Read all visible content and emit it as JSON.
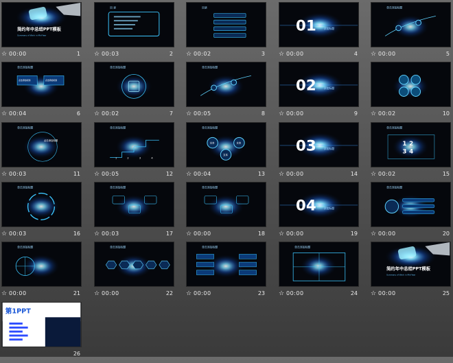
{
  "slides": [
    {
      "number": "1",
      "time": "00:00",
      "type": "title",
      "title": "简约年中总结PPT模板",
      "subtitle": "Summary of Work in Mid-Year"
    },
    {
      "number": "2",
      "time": "00:03",
      "type": "contents",
      "heading": "目 录"
    },
    {
      "number": "3",
      "time": "00:02",
      "type": "contents-list",
      "heading": "目录"
    },
    {
      "number": "4",
      "time": "00:00",
      "type": "section",
      "section_label": "01",
      "section_caption": "添加标题"
    },
    {
      "number": "5",
      "time": "00:00",
      "type": "diagram",
      "heading": "单击添加标题"
    },
    {
      "number": "6",
      "time": "00:04",
      "type": "diagram",
      "heading": "单击添加标题",
      "box_left": "点击添加标题",
      "box_right": "点击添加标题"
    },
    {
      "number": "7",
      "time": "00:02",
      "type": "diagram",
      "heading": "单击添加标题"
    },
    {
      "number": "8",
      "time": "00:05",
      "type": "diagram",
      "heading": "单击添加标题"
    },
    {
      "number": "9",
      "time": "00:00",
      "type": "section",
      "section_label": "02",
      "section_caption": "添加标题"
    },
    {
      "number": "10",
      "time": "00:02",
      "type": "diagram",
      "heading": ""
    },
    {
      "number": "11",
      "time": "00:03",
      "type": "diagram",
      "heading": "单击添加标题",
      "center_text": "点击添加标题"
    },
    {
      "number": "12",
      "time": "00:05",
      "type": "diagram",
      "heading": "单击添加标题",
      "steps": [
        "1",
        "2",
        "3",
        "4"
      ]
    },
    {
      "number": "13",
      "time": "00:04",
      "type": "diagram",
      "heading": "单击添加标题",
      "nodes": [
        "文本",
        "文本",
        "文本"
      ]
    },
    {
      "number": "14",
      "time": "00:00",
      "type": "section",
      "section_label": "03",
      "section_caption": "添加标题"
    },
    {
      "number": "15",
      "time": "00:02",
      "type": "diagram",
      "heading": "单击添加标题",
      "quadrants": [
        "1",
        "2",
        "3",
        "4"
      ]
    },
    {
      "number": "16",
      "time": "00:03",
      "type": "diagram",
      "heading": "单击添加标题"
    },
    {
      "number": "17",
      "time": "00:03",
      "type": "diagram",
      "heading": "单击添加标题"
    },
    {
      "number": "18",
      "time": "00:00",
      "type": "diagram",
      "heading": "单击添加标题"
    },
    {
      "number": "19",
      "time": "00:00",
      "type": "section",
      "section_label": "04",
      "section_caption": "添加标题"
    },
    {
      "number": "20",
      "time": "00:00",
      "type": "diagram",
      "heading": "单击添加标题"
    },
    {
      "number": "21",
      "time": "00:00",
      "type": "diagram",
      "heading": "单击添加标题"
    },
    {
      "number": "22",
      "time": "00:00",
      "type": "diagram",
      "heading": "单击添加标题"
    },
    {
      "number": "23",
      "time": "00:00",
      "type": "diagram",
      "heading": "单击添加标题"
    },
    {
      "number": "24",
      "time": "00:00",
      "type": "diagram",
      "heading": "单击添加标题"
    },
    {
      "number": "25",
      "time": "00:00",
      "type": "title",
      "title": "简约年中总结PPT模板",
      "subtitle": "Summary of Work in Mid-Year"
    },
    {
      "number": "26",
      "time": "",
      "type": "ad",
      "brand": "第1PPT"
    }
  ],
  "colors": {
    "accent": "#1e6fff",
    "glow": "#5fd3ff",
    "panel": "#05070c"
  },
  "icons": {
    "timing": "star-timing-icon"
  }
}
